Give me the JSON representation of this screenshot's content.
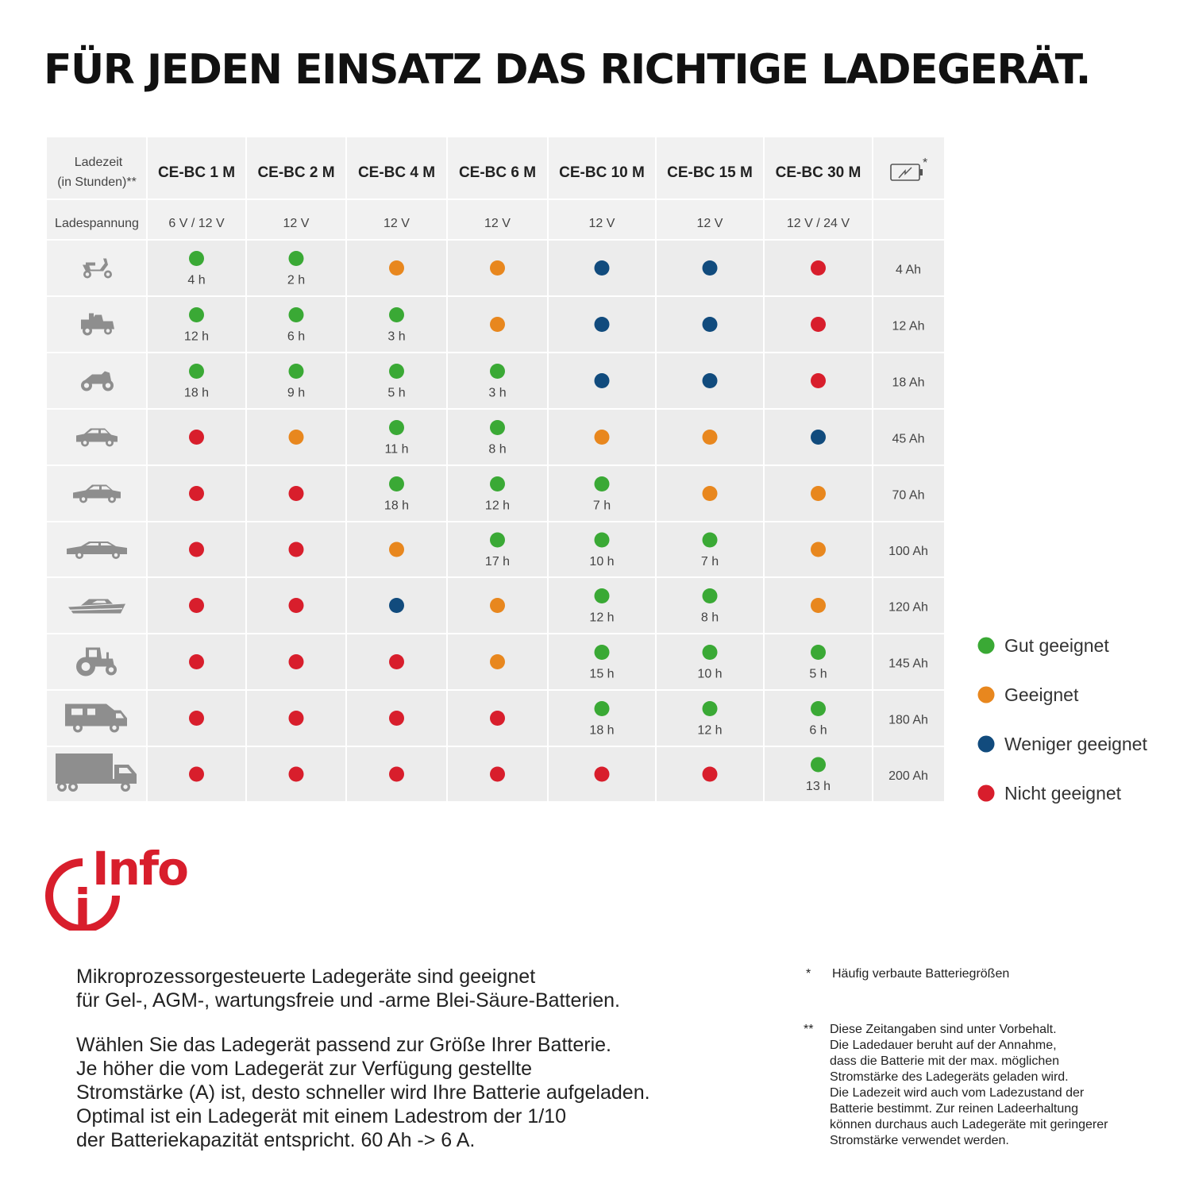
{
  "title": "FÜR JEDEN EINSATZ DAS RICHTIGE LADEGERÄT.",
  "table": {
    "corner_label_line1": "Ladezeit",
    "corner_label_line2": "(in Stunden)**",
    "voltage_label": "Ladespannung",
    "battery_column_icon": "battery-icon",
    "battery_column_mark": "*",
    "colors": {
      "good": "#3aa935",
      "ok": "#e8871e",
      "less": "#114b7d",
      "not": "#d81e2c"
    },
    "chargers": [
      {
        "name": "CE-BC 1 M",
        "voltage": "6 V / 12 V"
      },
      {
        "name": "CE-BC 2 M",
        "voltage": "12 V"
      },
      {
        "name": "CE-BC 4 M",
        "voltage": "12 V"
      },
      {
        "name": "CE-BC 6 M",
        "voltage": "12 V"
      },
      {
        "name": "CE-BC 10 M",
        "voltage": "12 V"
      },
      {
        "name": "CE-BC 15 M",
        "voltage": "12 V"
      },
      {
        "name": "CE-BC 30 M",
        "voltage": "12 V / 24 V"
      }
    ],
    "rows": [
      {
        "vehicle": "scooter-icon",
        "battery": "4 Ah",
        "cells": [
          [
            "good",
            "4 h"
          ],
          [
            "good",
            "2 h"
          ],
          [
            "ok",
            ""
          ],
          [
            "ok",
            ""
          ],
          [
            "less",
            ""
          ],
          [
            "less",
            ""
          ],
          [
            "not",
            ""
          ]
        ]
      },
      {
        "vehicle": "lawn-mower-icon",
        "battery": "12 Ah",
        "cells": [
          [
            "good",
            "12 h"
          ],
          [
            "good",
            "6 h"
          ],
          [
            "good",
            "3 h"
          ],
          [
            "ok",
            ""
          ],
          [
            "less",
            ""
          ],
          [
            "less",
            ""
          ],
          [
            "not",
            ""
          ]
        ]
      },
      {
        "vehicle": "motorcycle-icon",
        "battery": "18 Ah",
        "cells": [
          [
            "good",
            "18 h"
          ],
          [
            "good",
            "9 h"
          ],
          [
            "good",
            "5 h"
          ],
          [
            "good",
            "3 h"
          ],
          [
            "less",
            ""
          ],
          [
            "less",
            ""
          ],
          [
            "not",
            ""
          ]
        ]
      },
      {
        "vehicle": "small-car-icon",
        "battery": "45 Ah",
        "cells": [
          [
            "not",
            ""
          ],
          [
            "ok",
            ""
          ],
          [
            "good",
            "11 h"
          ],
          [
            "good",
            "8 h"
          ],
          [
            "ok",
            ""
          ],
          [
            "ok",
            ""
          ],
          [
            "less",
            ""
          ]
        ]
      },
      {
        "vehicle": "sedan-icon",
        "battery": "70 Ah",
        "cells": [
          [
            "not",
            ""
          ],
          [
            "not",
            ""
          ],
          [
            "good",
            "18 h"
          ],
          [
            "good",
            "12 h"
          ],
          [
            "good",
            "7 h"
          ],
          [
            "ok",
            ""
          ],
          [
            "ok",
            ""
          ]
        ]
      },
      {
        "vehicle": "large-car-icon",
        "battery": "100 Ah",
        "cells": [
          [
            "not",
            ""
          ],
          [
            "not",
            ""
          ],
          [
            "ok",
            ""
          ],
          [
            "good",
            "17 h"
          ],
          [
            "good",
            "10 h"
          ],
          [
            "good",
            "7 h"
          ],
          [
            "ok",
            ""
          ]
        ]
      },
      {
        "vehicle": "boat-icon",
        "battery": "120 Ah",
        "cells": [
          [
            "not",
            ""
          ],
          [
            "not",
            ""
          ],
          [
            "less",
            ""
          ],
          [
            "ok",
            ""
          ],
          [
            "good",
            "12 h"
          ],
          [
            "good",
            "8 h"
          ],
          [
            "ok",
            ""
          ]
        ]
      },
      {
        "vehicle": "tractor-icon",
        "battery": "145 Ah",
        "cells": [
          [
            "not",
            ""
          ],
          [
            "not",
            ""
          ],
          [
            "not",
            ""
          ],
          [
            "ok",
            ""
          ],
          [
            "good",
            "15 h"
          ],
          [
            "good",
            "10 h"
          ],
          [
            "good",
            "5 h"
          ]
        ]
      },
      {
        "vehicle": "camper-icon",
        "battery": "180 Ah",
        "cells": [
          [
            "not",
            ""
          ],
          [
            "not",
            ""
          ],
          [
            "not",
            ""
          ],
          [
            "not",
            ""
          ],
          [
            "good",
            "18 h"
          ],
          [
            "good",
            "12 h"
          ],
          [
            "good",
            "6 h"
          ]
        ]
      },
      {
        "vehicle": "truck-icon",
        "battery": "200 Ah",
        "cells": [
          [
            "not",
            ""
          ],
          [
            "not",
            ""
          ],
          [
            "not",
            ""
          ],
          [
            "not",
            ""
          ],
          [
            "not",
            ""
          ],
          [
            "not",
            ""
          ],
          [
            "good",
            "13 h"
          ]
        ]
      }
    ]
  },
  "legend": [
    {
      "key": "good",
      "label": "Gut geeignet"
    },
    {
      "key": "ok",
      "label": "Geeignet"
    },
    {
      "key": "less",
      "label": "Weniger geeignet"
    },
    {
      "key": "not",
      "label": "Nicht geeignet"
    }
  ],
  "info": {
    "logo_text": "Info",
    "logo_letter": "i",
    "paragraph1": [
      "Mikroprozessorgesteuerte Ladegeräte sind geeignet",
      "für Gel-, AGM-, wartungsfreie und -arme Blei-Säure-Batterien."
    ],
    "paragraph2": [
      "Wählen Sie das Ladegerät passend zur Größe Ihrer Batterie.",
      "Je höher die vom Ladegerät zur Verfügung gestellte",
      "Stromstärke (A) ist, desto schneller wird Ihre Batterie aufgeladen.",
      "Optimal ist ein Ladegerät mit einem Ladestrom der 1/10",
      "der Batteriekapazität entspricht. 60 Ah -> 6 A."
    ]
  },
  "footnotes": {
    "note1_marker": "*",
    "note1_text": "Häufig verbaute Batteriegrößen",
    "note2_marker": "**",
    "note2_lines": [
      "Diese Zeitangaben sind unter Vorbehalt.",
      "Die Ladedauer beruht auf der Annahme,",
      "dass die Batterie mit der max. möglichen",
      "Stromstärke des Ladegeräts geladen wird.",
      "Die Ladezeit wird auch vom Ladezustand der",
      "Batterie bestimmt. Zur reinen Ladeerhaltung",
      "können durchaus auch Ladegeräte mit geringerer",
      "Stromstärke verwendet werden."
    ]
  }
}
